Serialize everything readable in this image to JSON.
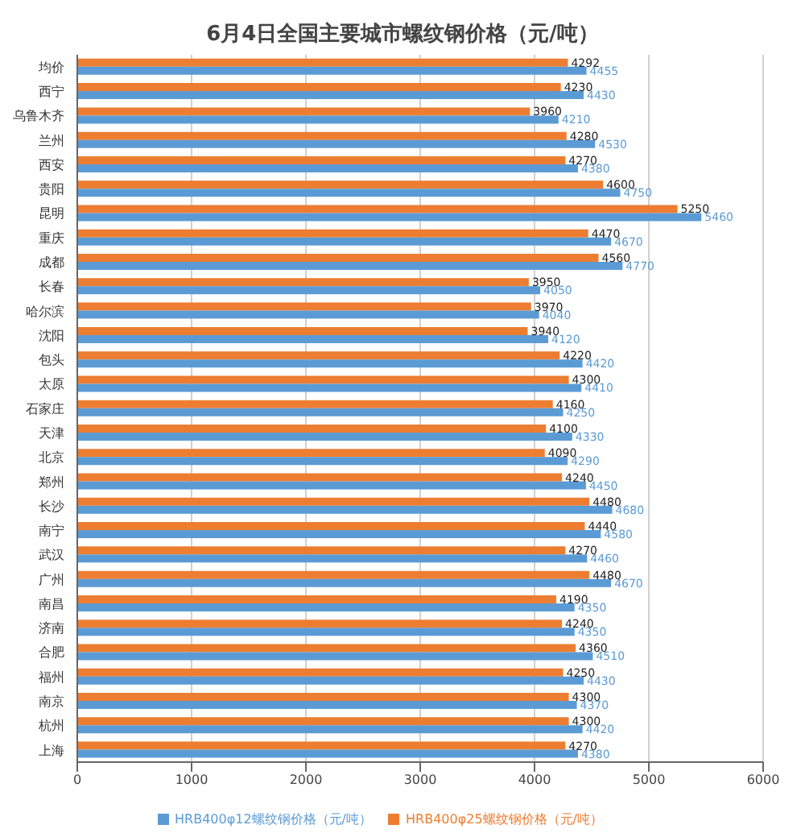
{
  "chart_data": {
    "type": "bar",
    "orientation": "horizontal",
    "title": "6月4日全国主要城市螺纹钢价格（元/吨）",
    "categories": [
      "均价",
      "西宁",
      "乌鲁木齐",
      "兰州",
      "西安",
      "贵阳",
      "昆明",
      "重庆",
      "成都",
      "长春",
      "哈尔滨",
      "沈阳",
      "包头",
      "太原",
      "石家庄",
      "天津",
      "北京",
      "郑州",
      "长沙",
      "南宁",
      "武汉",
      "广州",
      "南昌",
      "济南",
      "合肥",
      "福州",
      "南京",
      "杭州",
      "上海"
    ],
    "series": [
      {
        "name": "HRB400φ25螺纹钢价格（元/吨）",
        "color": "#ed7d31",
        "values": [
          4292,
          4230,
          3960,
          4280,
          4270,
          4600,
          5250,
          4470,
          4560,
          3950,
          3970,
          3940,
          4220,
          4300,
          4160,
          4100,
          4090,
          4240,
          4480,
          4440,
          4270,
          4480,
          4190,
          4240,
          4360,
          4250,
          4300,
          4300,
          4270
        ]
      },
      {
        "name": "HRB400φ12螺纹钢价格（元/吨）",
        "color": "#5b9bd5",
        "values": [
          4455,
          4430,
          4210,
          4530,
          4380,
          4750,
          5460,
          4670,
          4770,
          4050,
          4040,
          4120,
          4420,
          4410,
          4250,
          4330,
          4290,
          4450,
          4680,
          4580,
          4460,
          4670,
          4350,
          4350,
          4510,
          4430,
          4370,
          4420,
          4380
        ]
      }
    ],
    "xlim": [
      0,
      6000
    ],
    "xticks": [
      0,
      1000,
      2000,
      3000,
      4000,
      5000,
      6000
    ],
    "grid": "x",
    "legend": "bottom",
    "data_labels": true
  }
}
